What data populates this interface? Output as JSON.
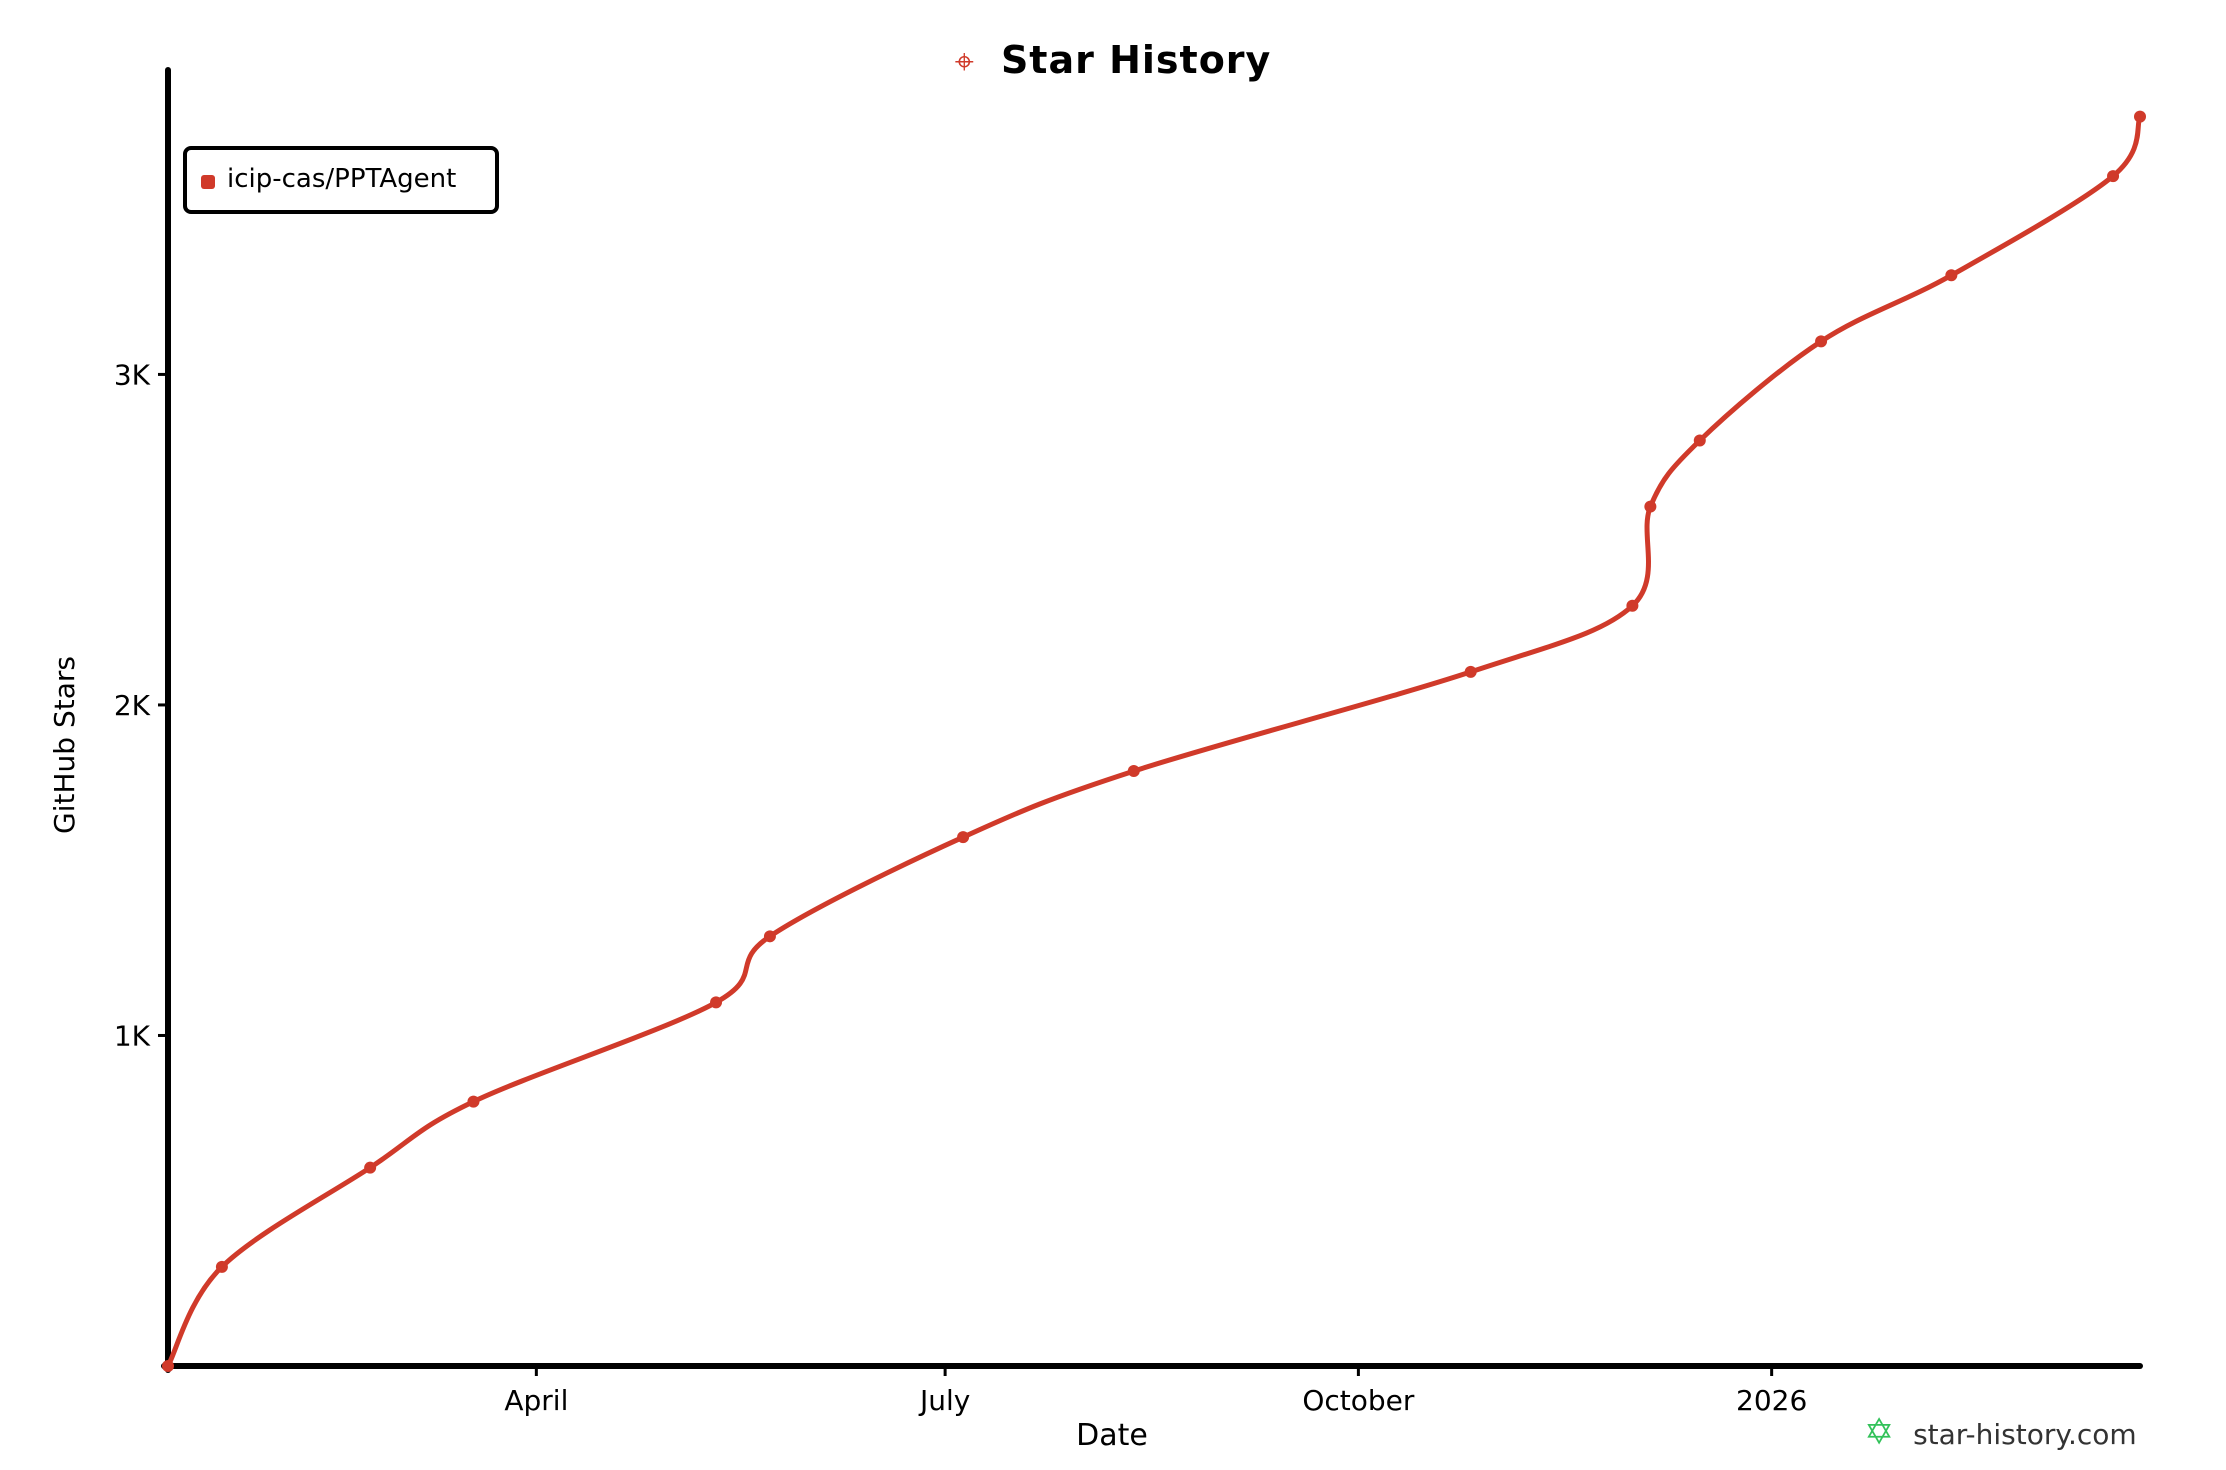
{
  "chart_data": {
    "type": "line",
    "title": "Star History",
    "xlabel": "Date",
    "ylabel": "GitHub Stars",
    "x_tick_labels": [
      "April",
      "July",
      "October",
      "2026"
    ],
    "y_tick_labels": [
      "1K",
      "2K",
      "3K"
    ],
    "y_ticks": [
      1000,
      2000,
      3000
    ],
    "x_ticks": [
      "2025-04-01",
      "2025-07-01",
      "2025-10-01",
      "2026-01-01"
    ],
    "xlim": [
      "2025-01-09",
      "2026-03-24"
    ],
    "ylim": [
      0,
      3800
    ],
    "grid": false,
    "legend_position": "top-left",
    "series": [
      {
        "name": "icip-cas/PPTAgent",
        "color": "#d03a2a",
        "points": [
          {
            "x": "2025-01-09",
            "y": 0
          },
          {
            "x": "2025-01-21",
            "y": 300
          },
          {
            "x": "2025-02-23",
            "y": 600
          },
          {
            "x": "2025-03-18",
            "y": 800
          },
          {
            "x": "2025-05-11",
            "y": 1100
          },
          {
            "x": "2025-05-23",
            "y": 1300
          },
          {
            "x": "2025-07-05",
            "y": 1600
          },
          {
            "x": "2025-08-12",
            "y": 1800
          },
          {
            "x": "2025-10-26",
            "y": 2100
          },
          {
            "x": "2025-12-01",
            "y": 2300
          },
          {
            "x": "2025-12-05",
            "y": 2600
          },
          {
            "x": "2025-12-16",
            "y": 2800
          },
          {
            "x": "2026-01-12",
            "y": 3100
          },
          {
            "x": "2026-02-10",
            "y": 3300
          },
          {
            "x": "2026-03-18",
            "y": 3600
          },
          {
            "x": "2026-03-24",
            "y": 3780
          }
        ]
      }
    ]
  },
  "watermark": {
    "text": "star-history.com",
    "icon": "star-icon",
    "color": "#33c25a"
  }
}
